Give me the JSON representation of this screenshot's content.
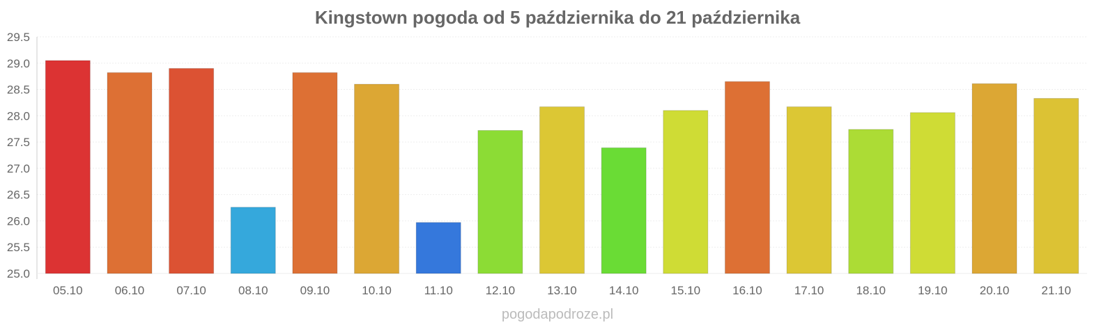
{
  "chart_data": {
    "type": "bar",
    "title": "Kingstown pogoda od 5 października do 21 października",
    "xlabel": "",
    "ylabel": "",
    "ylim": [
      25.0,
      29.5
    ],
    "yticks": [
      "25.0",
      "25.5",
      "26.0",
      "26.5",
      "27.0",
      "27.5",
      "28.0",
      "28.5",
      "29.0",
      "29.5"
    ],
    "grid": true,
    "categories": [
      "05.10",
      "06.10",
      "07.10",
      "08.10",
      "09.10",
      "10.10",
      "11.10",
      "12.10",
      "13.10",
      "14.10",
      "15.10",
      "16.10",
      "17.10",
      "18.10",
      "19.10",
      "20.10",
      "21.10"
    ],
    "values": [
      29.05,
      28.82,
      28.9,
      26.26,
      28.82,
      28.6,
      25.97,
      27.72,
      28.17,
      27.39,
      28.1,
      28.65,
      28.17,
      27.74,
      28.06,
      28.61,
      28.33
    ],
    "colors": [
      "#dc3333",
      "#dd7034",
      "#dc5233",
      "#35a8dc",
      "#dd7034",
      "#dca734",
      "#3578dc",
      "#8cdc35",
      "#dcc734",
      "#6adc35",
      "#cfdc35",
      "#dd7034",
      "#dcc734",
      "#acdc35",
      "#cfdc35",
      "#dca734",
      "#dcc234"
    ]
  },
  "footer": "pogodapodroze.pl"
}
